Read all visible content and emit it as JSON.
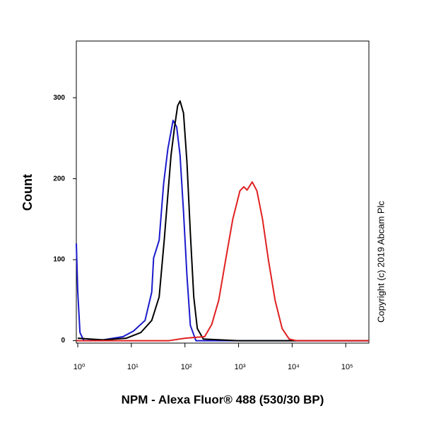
{
  "chart_data": {
    "type": "line",
    "x_label": "NPM - Alexa Fluor® 488 (530/30 BP)",
    "y_label": "Count",
    "annotation": "Copyright (c) 2019 Abcam Plc",
    "xscale": "log",
    "xlim": [
      0.94,
      270000
    ],
    "ylim": [
      -3,
      370
    ],
    "xticks": [
      {
        "value": 1,
        "label": "10⁰"
      },
      {
        "value": 10,
        "label": "10¹"
      },
      {
        "value": 100,
        "label": "10²"
      },
      {
        "value": 1000,
        "label": "10³"
      },
      {
        "value": 10000,
        "label": "10⁴"
      },
      {
        "value": 100000,
        "label": "10⁵"
      }
    ],
    "yticks": [
      0,
      100,
      200,
      300
    ],
    "grid": false,
    "series": [
      {
        "color": "#1a1acc",
        "x": [
          0.94,
          1,
          1.1,
          1.3,
          3,
          7,
          11,
          18,
          24,
          26,
          33,
          40,
          48,
          60,
          70,
          81,
          94,
          109,
          126,
          160,
          270000
        ],
        "values": [
          120,
          60,
          10,
          0,
          1,
          5,
          12,
          25,
          60,
          102,
          124,
          194,
          237,
          272,
          264,
          229,
          159,
          80,
          19,
          0,
          0
        ]
      },
      {
        "color": "#000000",
        "x": [
          1,
          3,
          8,
          15,
          24,
          33,
          41,
          55,
          64,
          73,
          81,
          94,
          109,
          126,
          146,
          170,
          220,
          1000,
          270000
        ],
        "values": [
          3,
          1,
          3,
          10,
          25,
          54,
          124,
          229,
          264,
          290,
          296,
          281,
          220,
          133,
          54,
          15,
          2,
          0,
          0
        ]
      },
      {
        "color": "#e02020",
        "x": [
          0.94,
          50,
          100,
          150,
          233,
          316,
          427,
          575,
          780,
          1060,
          1250,
          1440,
          1800,
          2200,
          2800,
          3600,
          4800,
          6500,
          8800,
          12000,
          270000
        ],
        "values": [
          0,
          0,
          3,
          4,
          5,
          20,
          50,
          100,
          150,
          185,
          190,
          186,
          196,
          185,
          150,
          100,
          50,
          15,
          2,
          0,
          0
        ]
      }
    ]
  }
}
